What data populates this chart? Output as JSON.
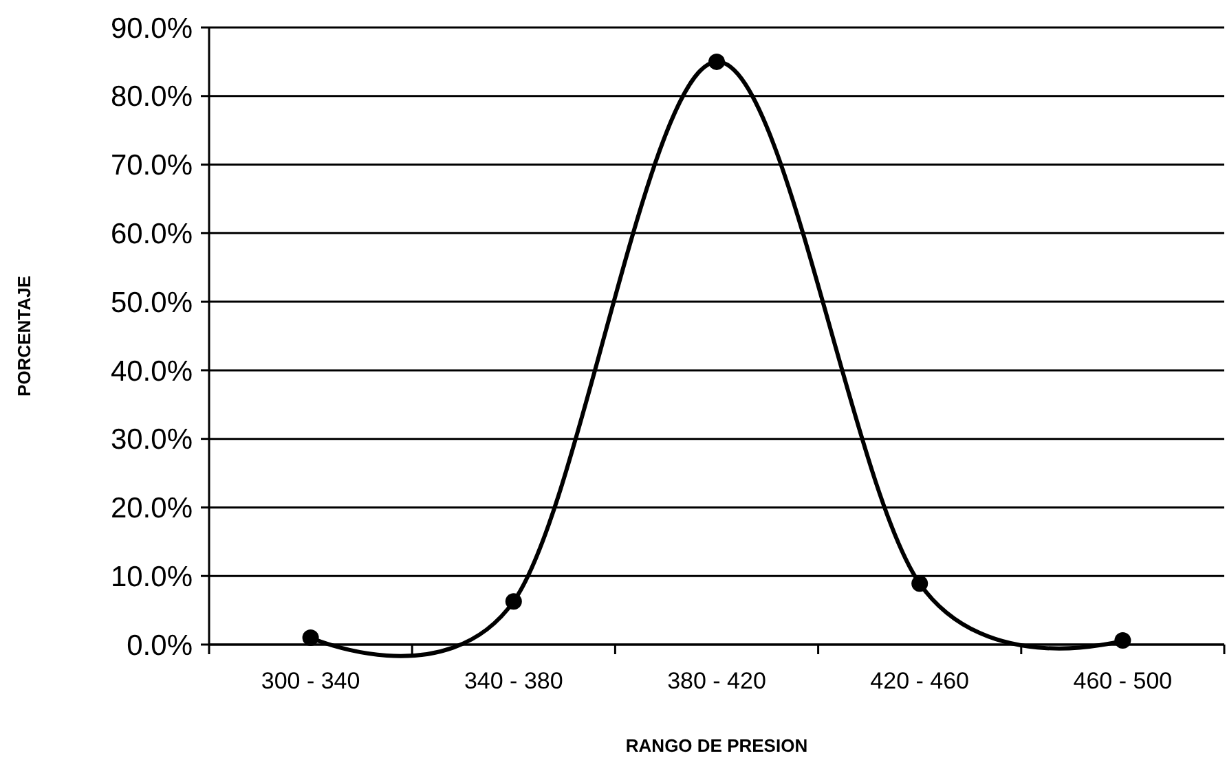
{
  "chart_data": {
    "type": "line",
    "xlabel": "RANGO DE PRESION",
    "ylabel": "PORCENTAJE",
    "categories": [
      "300 - 340",
      "340 - 380",
      "380 - 420",
      "420 - 460",
      "460 - 500"
    ],
    "values": [
      1.0,
      6.3,
      85.0,
      8.9,
      0.6
    ],
    "color": "#000000",
    "marker": "circle",
    "line_style": "solid",
    "grid": "y",
    "ylim": [
      0,
      90
    ],
    "yticks": [
      {
        "value": 0,
        "label": "0.0%"
      },
      {
        "value": 10,
        "label": "10.0%"
      },
      {
        "value": 20,
        "label": "20.0%"
      },
      {
        "value": 30,
        "label": "30.0%"
      },
      {
        "value": 40,
        "label": "40.0%"
      },
      {
        "value": 50,
        "label": "50.0%"
      },
      {
        "value": 60,
        "label": "60.0%"
      },
      {
        "value": 70,
        "label": "70.0%"
      },
      {
        "value": 80,
        "label": "80.0%"
      },
      {
        "value": 90,
        "label": "90.0%"
      }
    ]
  }
}
